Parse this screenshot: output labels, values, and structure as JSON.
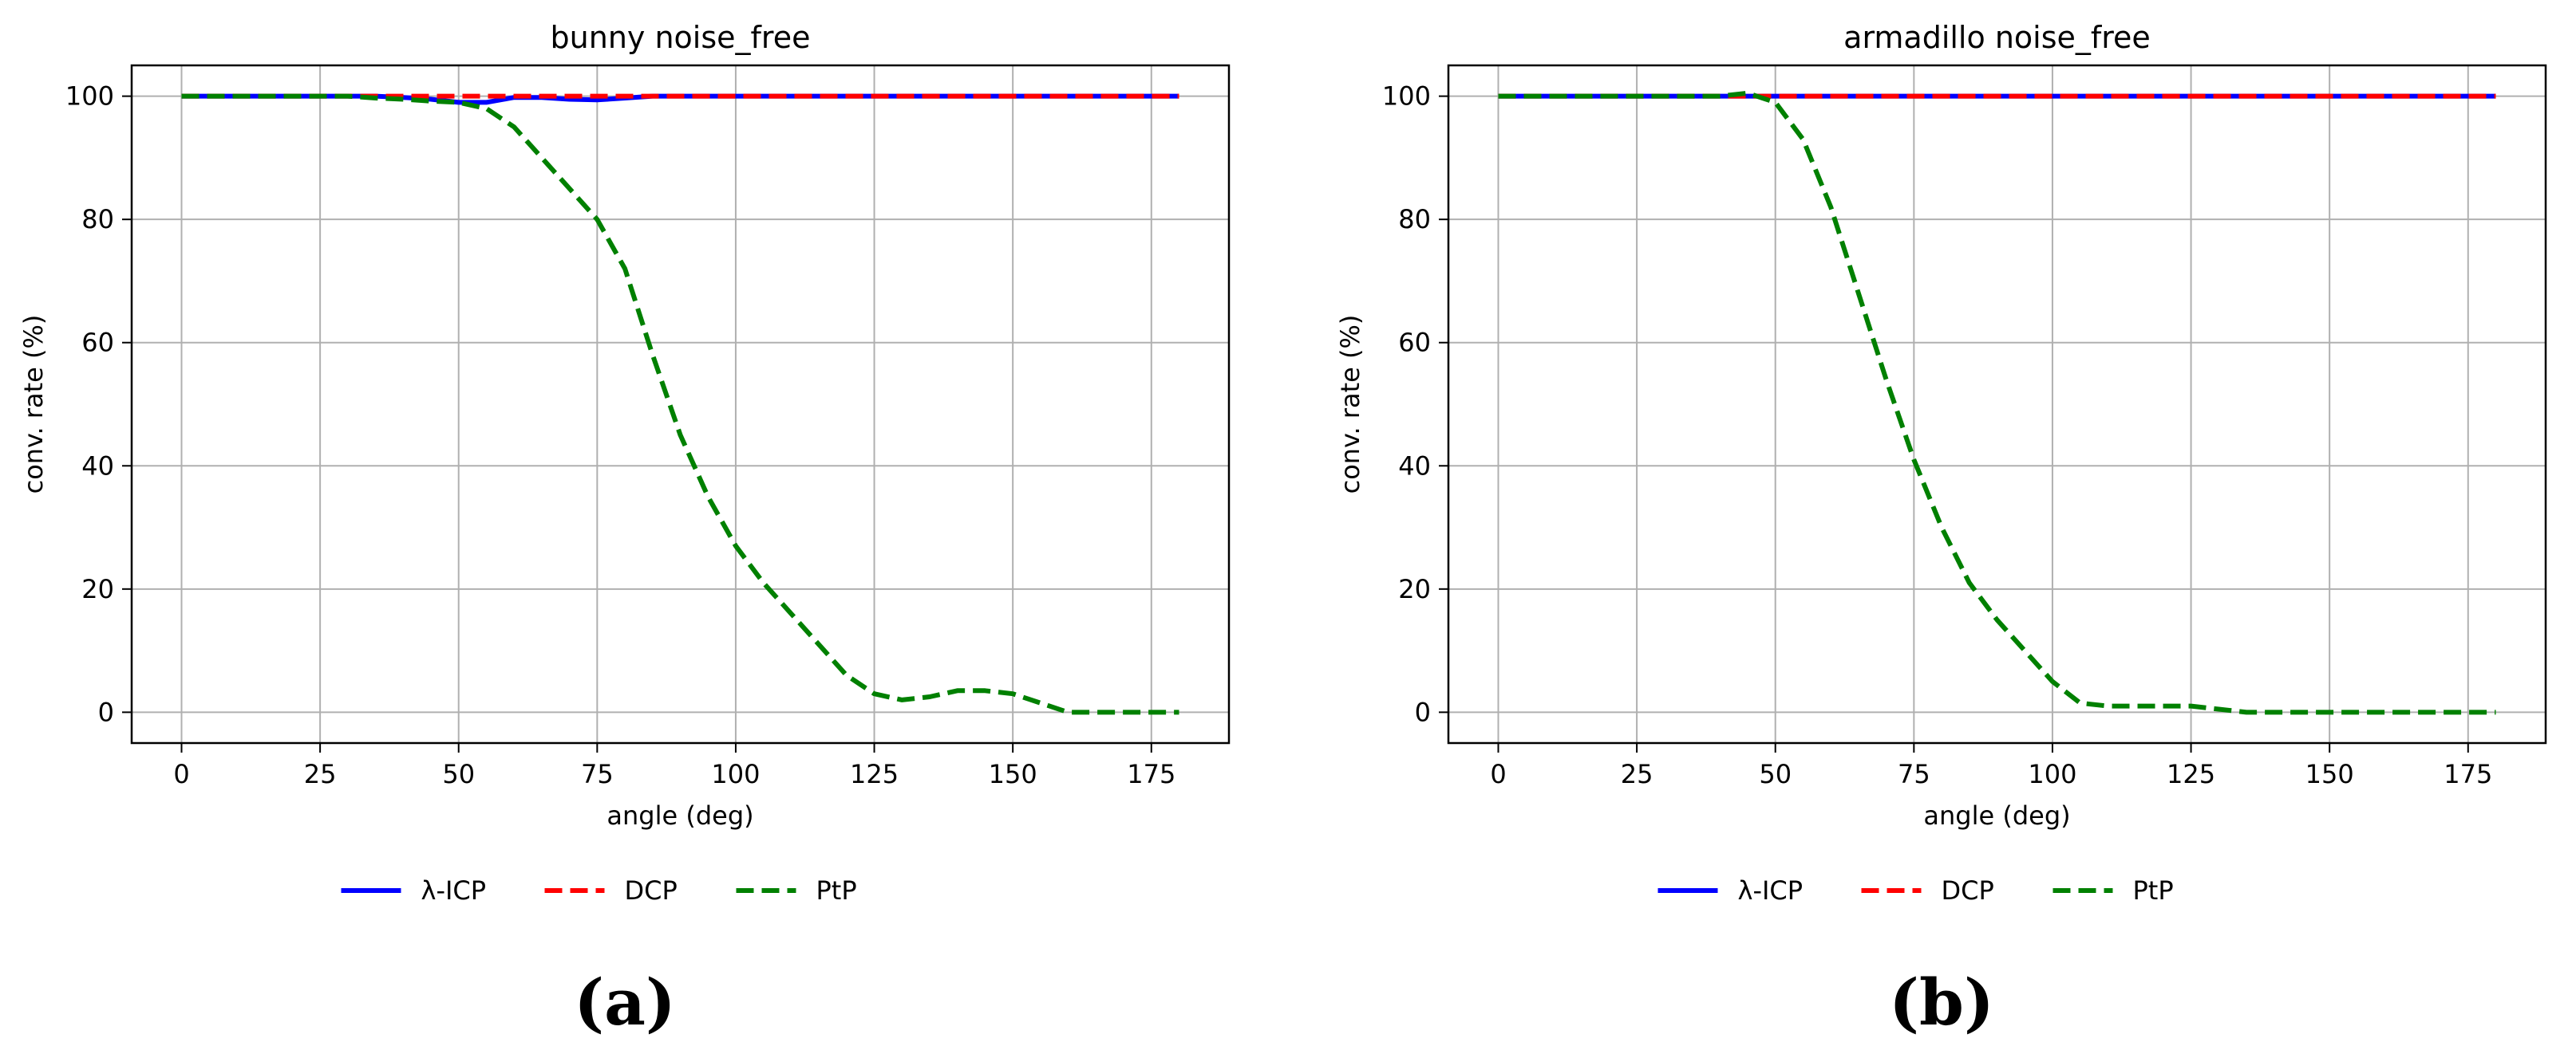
{
  "chart_data": [
    {
      "type": "line",
      "title": "bunny noise_free",
      "xlabel": "angle (deg)",
      "ylabel": "conv. rate (%)",
      "xlim": [
        -9,
        189
      ],
      "ylim": [
        -5,
        105
      ],
      "xticks": [
        "0",
        "25",
        "50",
        "75",
        "100",
        "125",
        "150",
        "175"
      ],
      "yticks": [
        "0",
        "20",
        "40",
        "60",
        "80",
        "100"
      ],
      "grid": true,
      "legend_position": "bottom-center",
      "panel_label": "(a)",
      "x": [
        0,
        5,
        10,
        15,
        20,
        25,
        30,
        35,
        40,
        45,
        50,
        55,
        60,
        65,
        70,
        75,
        80,
        85,
        90,
        95,
        100,
        105,
        110,
        115,
        120,
        125,
        130,
        135,
        140,
        145,
        150,
        155,
        160,
        165,
        170,
        175,
        180
      ],
      "series": [
        {
          "name": "λ-ICP",
          "color": "#0000ff",
          "style": "solid",
          "values": [
            100,
            100,
            100,
            100,
            100,
            100,
            100,
            100,
            99.8,
            99.5,
            99,
            99,
            99.8,
            99.8,
            99.5,
            99.4,
            99.7,
            100,
            100,
            100,
            100,
            100,
            100,
            100,
            100,
            100,
            100,
            100,
            100,
            100,
            100,
            100,
            100,
            100,
            100,
            100,
            100
          ]
        },
        {
          "name": "DCP",
          "color": "#ff0000",
          "style": "dashed",
          "values": [
            100,
            100,
            100,
            100,
            100,
            100,
            100,
            100,
            100,
            100,
            100,
            100,
            100,
            100,
            100,
            100,
            100,
            100,
            100,
            100,
            100,
            100,
            100,
            100,
            100,
            100,
            100,
            100,
            100,
            100,
            100,
            100,
            100,
            100,
            100,
            100,
            100
          ]
        },
        {
          "name": "PtP",
          "color": "#008000",
          "style": "dashed",
          "values": [
            100,
            100,
            100,
            100,
            100,
            100,
            100,
            99.7,
            99.5,
            99.2,
            99,
            98,
            95,
            90,
            85,
            80,
            72,
            58,
            45,
            35,
            27,
            21,
            16,
            11,
            6,
            3,
            2,
            2.5,
            3.5,
            3.5,
            3,
            1.5,
            0,
            0,
            0,
            0,
            0
          ]
        }
      ]
    },
    {
      "type": "line",
      "title": "armadillo noise_free",
      "xlabel": "angle (deg)",
      "ylabel": "conv. rate (%)",
      "xlim": [
        -9,
        189
      ],
      "ylim": [
        -5,
        105
      ],
      "xticks": [
        "0",
        "25",
        "50",
        "75",
        "100",
        "125",
        "150",
        "175"
      ],
      "yticks": [
        "0",
        "20",
        "40",
        "60",
        "80",
        "100"
      ],
      "grid": true,
      "legend_position": "bottom-center",
      "panel_label": "(b)",
      "x": [
        0,
        5,
        10,
        15,
        20,
        25,
        30,
        35,
        40,
        45,
        50,
        55,
        60,
        65,
        70,
        75,
        80,
        85,
        90,
        95,
        100,
        105,
        110,
        115,
        120,
        125,
        130,
        135,
        140,
        145,
        150,
        155,
        160,
        165,
        170,
        175,
        180
      ],
      "series": [
        {
          "name": "λ-ICP",
          "color": "#0000ff",
          "style": "solid",
          "values": [
            100,
            100,
            100,
            100,
            100,
            100,
            100,
            100,
            100,
            100,
            100,
            100,
            100,
            100,
            100,
            100,
            100,
            100,
            100,
            100,
            100,
            100,
            100,
            100,
            100,
            100,
            100,
            100,
            100,
            100,
            100,
            100,
            100,
            100,
            100,
            100,
            100
          ]
        },
        {
          "name": "DCP",
          "color": "#ff0000",
          "style": "dashed",
          "values": [
            100,
            100,
            100,
            100,
            100,
            100,
            100,
            100,
            100,
            100,
            100,
            100,
            100,
            100,
            100,
            100,
            100,
            100,
            100,
            100,
            100,
            100,
            100,
            100,
            100,
            100,
            100,
            100,
            100,
            100,
            100,
            100,
            100,
            100,
            100,
            100,
            100
          ]
        },
        {
          "name": "PtP",
          "color": "#008000",
          "style": "dashed",
          "values": [
            100,
            100,
            100,
            100,
            100,
            100,
            100,
            100,
            100,
            100.5,
            99,
            93,
            82,
            68,
            54,
            41,
            30,
            21,
            15,
            10,
            5,
            1.5,
            1,
            1,
            1,
            1,
            0.5,
            0,
            0,
            0,
            0,
            0,
            0,
            0,
            0,
            0,
            0
          ]
        }
      ]
    }
  ]
}
